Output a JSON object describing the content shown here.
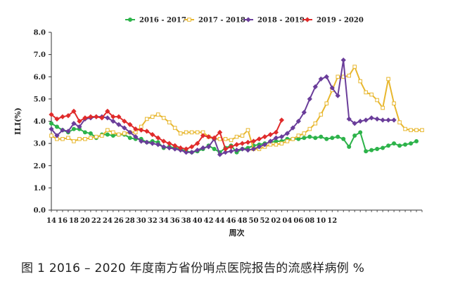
{
  "chart_data": {
    "type": "line",
    "xlabel": "周次",
    "ylabel": "ILI(%)",
    "ylim": [
      0,
      8
    ],
    "yticks": [
      "0.0",
      "1.0",
      "2.0",
      "3.0",
      "4.0",
      "5.0",
      "6.0",
      "7.0",
      "8.0"
    ],
    "xticks": [
      "14",
      "16",
      "18",
      "20",
      "22",
      "24",
      "26",
      "28",
      "30",
      "32",
      "34",
      "36",
      "38",
      "40",
      "42",
      "44",
      "46",
      "48",
      "50",
      "52",
      "02",
      "04",
      "06",
      "08",
      "10",
      "12"
    ],
    "legend_position": "top",
    "grid": false,
    "series": [
      {
        "name": "2016 - 2017",
        "color": "#2db34a",
        "marker": "circle",
        "values": [
          3.9,
          3.75,
          3.6,
          3.5,
          3.65,
          3.65,
          3.5,
          3.45,
          3.25,
          3.4,
          3.4,
          3.35,
          3.4,
          3.4,
          3.25,
          3.2,
          3.2,
          3.05,
          3.1,
          3.05,
          2.8,
          2.85,
          2.8,
          2.75,
          2.65,
          2.6,
          2.65,
          2.75,
          2.9,
          2.75,
          2.6,
          2.8,
          2.9,
          2.6,
          2.75,
          2.8,
          2.9,
          2.95,
          3.0,
          3.05,
          3.1,
          3.1,
          3.2,
          3.2,
          3.2,
          3.25,
          3.3,
          3.25,
          3.3,
          3.2,
          3.25,
          3.3,
          3.2,
          2.85,
          3.35,
          3.5,
          2.65,
          2.7,
          2.75,
          2.8,
          2.9,
          3.0,
          2.9,
          2.95,
          3.0,
          3.1
        ]
      },
      {
        "name": "2017 - 2018",
        "color": "#e8b72e",
        "marker": "square",
        "values": [
          3.35,
          3.2,
          3.2,
          3.25,
          3.1,
          3.2,
          3.2,
          3.25,
          3.3,
          3.35,
          3.6,
          3.5,
          3.4,
          3.45,
          3.5,
          3.5,
          3.75,
          4.1,
          4.2,
          4.3,
          4.15,
          3.95,
          3.7,
          3.45,
          3.5,
          3.5,
          3.5,
          3.5,
          3.3,
          3.2,
          3.2,
          3.2,
          3.15,
          3.3,
          3.35,
          3.6,
          2.75,
          2.75,
          2.85,
          2.95,
          2.95,
          3.0,
          3.1,
          3.2,
          3.35,
          3.45,
          3.65,
          3.9,
          4.3,
          4.8,
          5.4,
          6.0,
          6.0,
          6.05,
          6.45,
          5.8,
          5.3,
          5.2,
          4.95,
          4.6,
          5.9,
          4.8,
          3.95,
          3.65,
          3.6,
          3.6,
          3.6
        ]
      },
      {
        "name": "2018 - 2019",
        "color": "#6a3d9a",
        "marker": "diamond",
        "values": [
          3.65,
          3.35,
          3.6,
          3.55,
          3.9,
          3.75,
          4.1,
          4.15,
          4.2,
          4.2,
          4.15,
          4.0,
          3.85,
          3.7,
          3.5,
          3.3,
          3.1,
          3.05,
          3.0,
          2.95,
          2.85,
          2.8,
          2.75,
          2.7,
          2.6,
          2.6,
          2.7,
          2.8,
          2.85,
          3.2,
          2.5,
          2.6,
          2.65,
          2.7,
          2.75,
          2.7,
          2.75,
          2.85,
          2.95,
          3.1,
          3.25,
          3.3,
          3.45,
          3.7,
          4.0,
          4.4,
          5.0,
          5.55,
          5.9,
          6.0,
          5.5,
          5.15,
          6.75,
          4.1,
          3.9,
          4.0,
          4.05,
          4.15,
          4.1,
          4.05,
          4.05,
          4.05
        ]
      },
      {
        "name": "2019 - 2020",
        "color": "#e02b2b",
        "marker": "diamond",
        "values": [
          4.3,
          4.1,
          4.2,
          4.25,
          4.45,
          4.0,
          4.15,
          4.2,
          4.2,
          4.15,
          4.45,
          4.2,
          4.2,
          4.0,
          3.85,
          3.65,
          3.6,
          3.55,
          3.4,
          3.25,
          3.1,
          3.0,
          2.9,
          2.8,
          2.75,
          2.85,
          3.0,
          3.35,
          3.3,
          3.25,
          3.5,
          2.75,
          2.85,
          2.95,
          3.0,
          3.05,
          3.1,
          3.2,
          3.3,
          3.4,
          3.5,
          4.05
        ]
      }
    ]
  },
  "caption": "图 1  2016 – 2020 年度南方省份哨点医院报告的流感样病例 %"
}
